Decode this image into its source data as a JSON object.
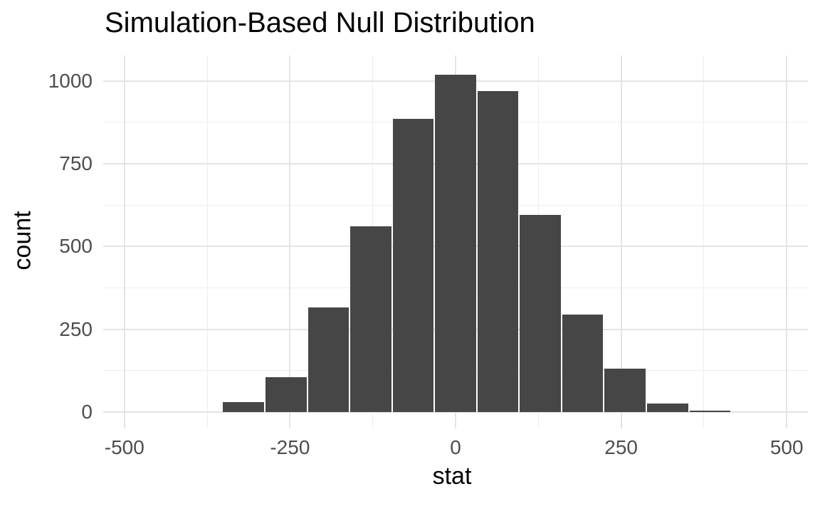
{
  "chart_data": {
    "type": "bar",
    "subtype": "histogram",
    "title": "Simulation-Based Null Distribution",
    "xlabel": "stat",
    "ylabel": "count",
    "x_ticks": [
      -500,
      -250,
      0,
      250,
      500
    ],
    "y_ticks": [
      0,
      250,
      500,
      750,
      1000
    ],
    "x_minor_ticks": [
      -375,
      -125,
      125,
      375
    ],
    "y_minor_ticks": [
      125,
      375,
      625,
      875
    ],
    "xlim": [
      -532,
      532
    ],
    "ylim": [
      -50,
      1077
    ],
    "grid": "major and minor gridlines, no axis lines, white background",
    "legend": "none",
    "bin_width": 64,
    "bin_centers": [
      -320,
      -256,
      -192,
      -128,
      -64,
      0,
      64,
      128,
      192,
      256,
      320,
      384
    ],
    "counts": [
      30,
      105,
      315,
      560,
      885,
      1020,
      970,
      595,
      295,
      130,
      25,
      3
    ]
  },
  "colors": {
    "background": "#FFFFFF",
    "bar_fill": "#464646",
    "grid_major": "#E4E4E4",
    "grid_minor": "#EDEDED",
    "tick_label": "#4D4D4D",
    "title_text": "#000000"
  }
}
